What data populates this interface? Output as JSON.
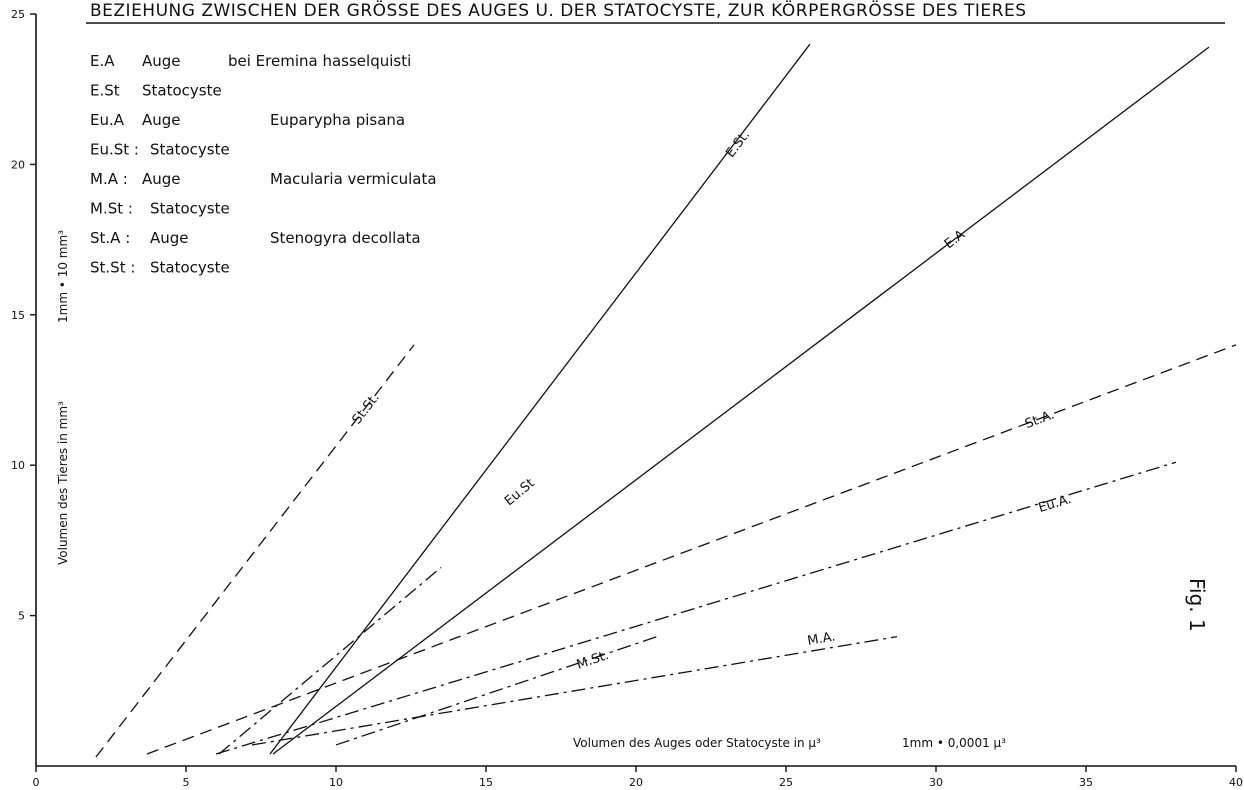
{
  "chart_data": {
    "type": "line",
    "title": "BEZIEHUNG ZWISCHEN DER GRÖSSE DES AUGES U. DER STATOCYSTE, ZUR KÖRPERGRÖSSE DES TIERES",
    "xlabel": "Volumen des Auges oder Statocyste in μ³",
    "xscale_note": "1mm • 0,0001 μ³",
    "ylabel": "Volumen des Tieres in mm³",
    "yscale_note": "1mm • 10 mm³",
    "xlim": [
      0,
      40
    ],
    "ylim": [
      0,
      25
    ],
    "x_ticks": [
      0,
      5,
      10,
      15,
      20,
      25,
      30,
      35,
      40
    ],
    "y_ticks": [
      5,
      10,
      15,
      20,
      25
    ],
    "x_tick_labels": [
      "0",
      "5",
      "10",
      "15",
      "20",
      "25",
      "30",
      "35",
      "40"
    ],
    "y_tick_labels": [
      "5",
      "10",
      "15",
      "20",
      "25"
    ],
    "figure_label": "Fig. 1",
    "legend": [
      {
        "code": "E.A",
        "organ": "Auge",
        "species": "bei Eremina hasselquisti"
      },
      {
        "code": "E.St",
        "organ": "Statocyste",
        "species": ""
      },
      {
        "code": "Eu.A",
        "organ": "Auge",
        "species": "Euparypha pisana"
      },
      {
        "code": "Eu.St :",
        "organ": "Statocyste",
        "species": ""
      },
      {
        "code": "M.A :",
        "organ": "Auge",
        "species": "Macularia vermiculata"
      },
      {
        "code": "M.St :",
        "organ": "Statocyste",
        "species": ""
      },
      {
        "code": "St.A :",
        "organ": "Auge",
        "species": "Stenogyra decollata"
      },
      {
        "code": "St.St :",
        "organ": "Statocyste",
        "species": ""
      }
    ],
    "series": [
      {
        "name": "E.St.",
        "style": "solid",
        "x": [
          7.8,
          25.8
        ],
        "y": [
          0.4,
          24.0
        ],
        "label_at": [
          23.5,
          20.6
        ]
      },
      {
        "name": "E.A",
        "style": "solid",
        "x": [
          7.9,
          39.1
        ],
        "y": [
          0.4,
          23.9
        ],
        "label_at": [
          30.7,
          17.4
        ]
      },
      {
        "name": "St.A.",
        "style": "dashed",
        "x": [
          3.7,
          40.0
        ],
        "y": [
          0.4,
          14.0
        ],
        "label_at": [
          33.5,
          11.4
        ]
      },
      {
        "name": "St.St.",
        "style": "dashed",
        "x": [
          2.0,
          12.6
        ],
        "y": [
          0.3,
          14.0
        ],
        "label_at": [
          11.1,
          11.8
        ]
      },
      {
        "name": "Eu.A.",
        "style": "dashdot",
        "x": [
          6.0,
          38.0
        ],
        "y": [
          0.4,
          10.1
        ],
        "label_at": [
          34.0,
          8.6
        ]
      },
      {
        "name": "Eu.St",
        "style": "dashdot",
        "x": [
          6.1,
          13.5
        ],
        "y": [
          0.4,
          6.6
        ],
        "label_at": [
          16.2,
          9.0
        ]
      },
      {
        "name": "M.St.",
        "style": "dashdot",
        "x": [
          10.0,
          20.7
        ],
        "y": [
          0.7,
          4.3
        ],
        "label_at": [
          18.6,
          3.4
        ]
      },
      {
        "name": "M.A.",
        "style": "dashdot",
        "x": [
          7.2,
          28.7
        ],
        "y": [
          0.7,
          4.3
        ],
        "label_at": [
          26.2,
          4.1
        ]
      }
    ]
  }
}
